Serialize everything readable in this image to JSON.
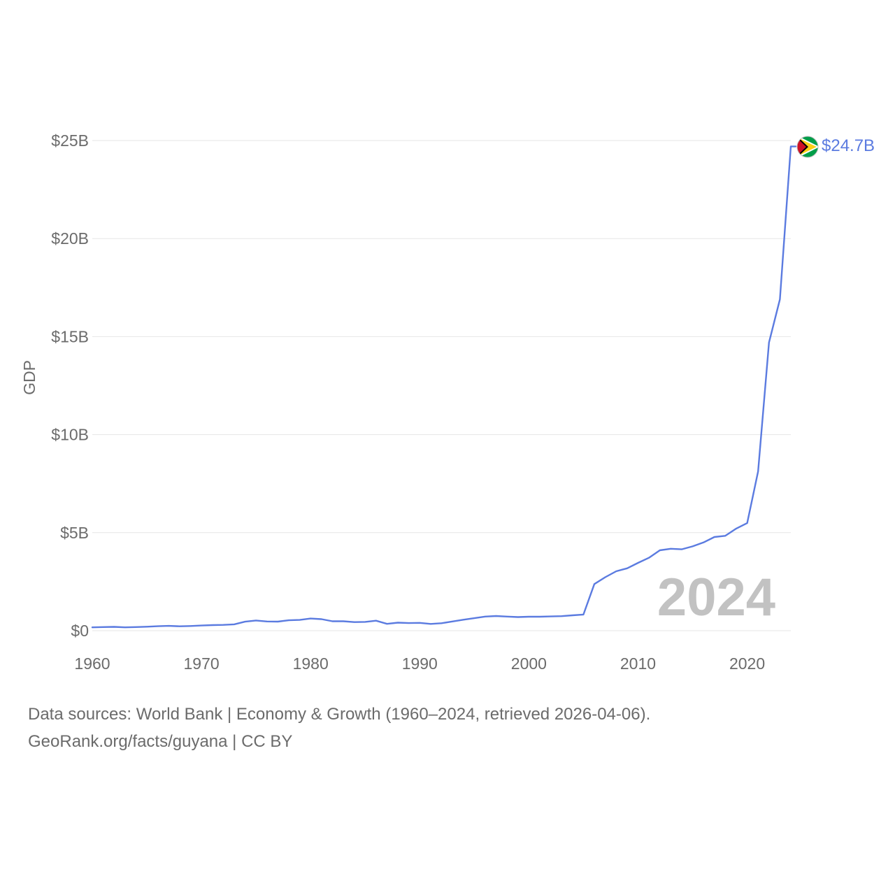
{
  "chart_data": {
    "type": "line",
    "title": "",
    "xlabel": "",
    "ylabel": "GDP",
    "xlim": [
      1960,
      2024
    ],
    "ylim": [
      0,
      25000000000
    ],
    "x_ticks": [
      1960,
      1970,
      1980,
      1990,
      2000,
      2010,
      2020
    ],
    "x_tick_labels": [
      "1960",
      "1970",
      "1980",
      "1990",
      "2000",
      "2010",
      "2020"
    ],
    "y_ticks": [
      0,
      5000000000,
      10000000000,
      15000000000,
      20000000000,
      25000000000
    ],
    "y_tick_labels": [
      "$0",
      "$5B",
      "$10B",
      "$15B",
      "$20B",
      "$25B"
    ],
    "grid": true,
    "highlight_year": "2024",
    "end_value_label": "$24.7B",
    "line_color": "#5b7be0",
    "series": [
      {
        "name": "Guyana GDP",
        "x": [
          1960,
          1961,
          1962,
          1963,
          1964,
          1965,
          1966,
          1967,
          1968,
          1969,
          1970,
          1971,
          1972,
          1973,
          1974,
          1975,
          1976,
          1977,
          1978,
          1979,
          1980,
          1981,
          1982,
          1983,
          1984,
          1985,
          1986,
          1987,
          1988,
          1989,
          1990,
          1991,
          1992,
          1993,
          1994,
          1995,
          1996,
          1997,
          1998,
          1999,
          2000,
          2001,
          2002,
          2003,
          2004,
          2005,
          2006,
          2007,
          2008,
          2009,
          2010,
          2011,
          2012,
          2013,
          2014,
          2015,
          2016,
          2017,
          2018,
          2019,
          2020,
          2021,
          2022,
          2023,
          2024
        ],
        "values": [
          170000000,
          185000000,
          195000000,
          170000000,
          185000000,
          205000000,
          230000000,
          245000000,
          225000000,
          240000000,
          265000000,
          285000000,
          295000000,
          325000000,
          460000000,
          520000000,
          470000000,
          465000000,
          530000000,
          550000000,
          620000000,
          590000000,
          480000000,
          480000000,
          440000000,
          450000000,
          510000000,
          350000000,
          410000000,
          390000000,
          400000000,
          345000000,
          380000000,
          470000000,
          560000000,
          640000000,
          720000000,
          750000000,
          720000000,
          695000000,
          712000000,
          713000000,
          726000000,
          743000000,
          785000000,
          825000000,
          2380000000,
          2730000000,
          3030000000,
          3180000000,
          3460000000,
          3720000000,
          4100000000,
          4180000000,
          4150000000,
          4300000000,
          4500000000,
          4780000000,
          4840000000,
          5210000000,
          5490000000,
          8120000000,
          14700000000,
          16900000000,
          24700000000
        ]
      }
    ]
  },
  "footer": {
    "line1": "Data sources: World Bank | Economy & Growth (1960–2024, retrieved 2026-04-06).",
    "line2": "GeoRank.org/facts/guyana | CC BY"
  }
}
